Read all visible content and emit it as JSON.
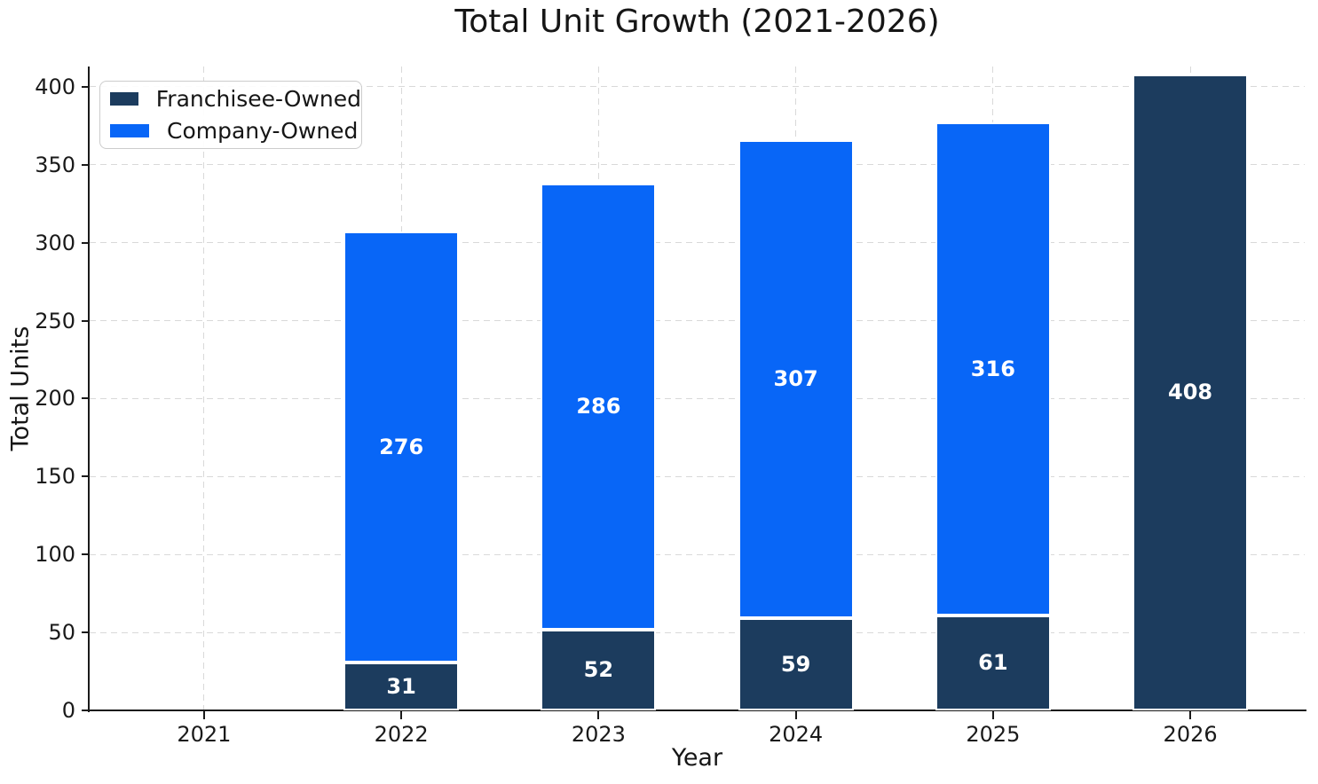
{
  "chart_data": {
    "type": "bar",
    "stacked": true,
    "title": "Total Unit Growth (2021-2026)",
    "xlabel": "Year",
    "ylabel": "Total Units",
    "categories": [
      "2021",
      "2022",
      "2023",
      "2024",
      "2025",
      "2026"
    ],
    "series": [
      {
        "name": "Franchisee-Owned",
        "color": "#1c3c5e",
        "values": [
          0,
          31,
          52,
          59,
          61,
          408
        ]
      },
      {
        "name": "Company-Owned",
        "color": "#0866f7",
        "values": [
          0,
          276,
          286,
          307,
          316,
          0
        ]
      }
    ],
    "yticks": [
      0,
      50,
      100,
      150,
      200,
      250,
      300,
      350,
      400
    ],
    "ylim": [
      0,
      413
    ],
    "grid": true,
    "grid_style": "dashed",
    "legend_position": "upper-left",
    "bar_label_color": "#ffffff",
    "bar_edge_color": "#ffffff",
    "axis_color": "#1a1a1a",
    "grid_color": "#d9d9d9",
    "background_color": "#ffffff"
  }
}
